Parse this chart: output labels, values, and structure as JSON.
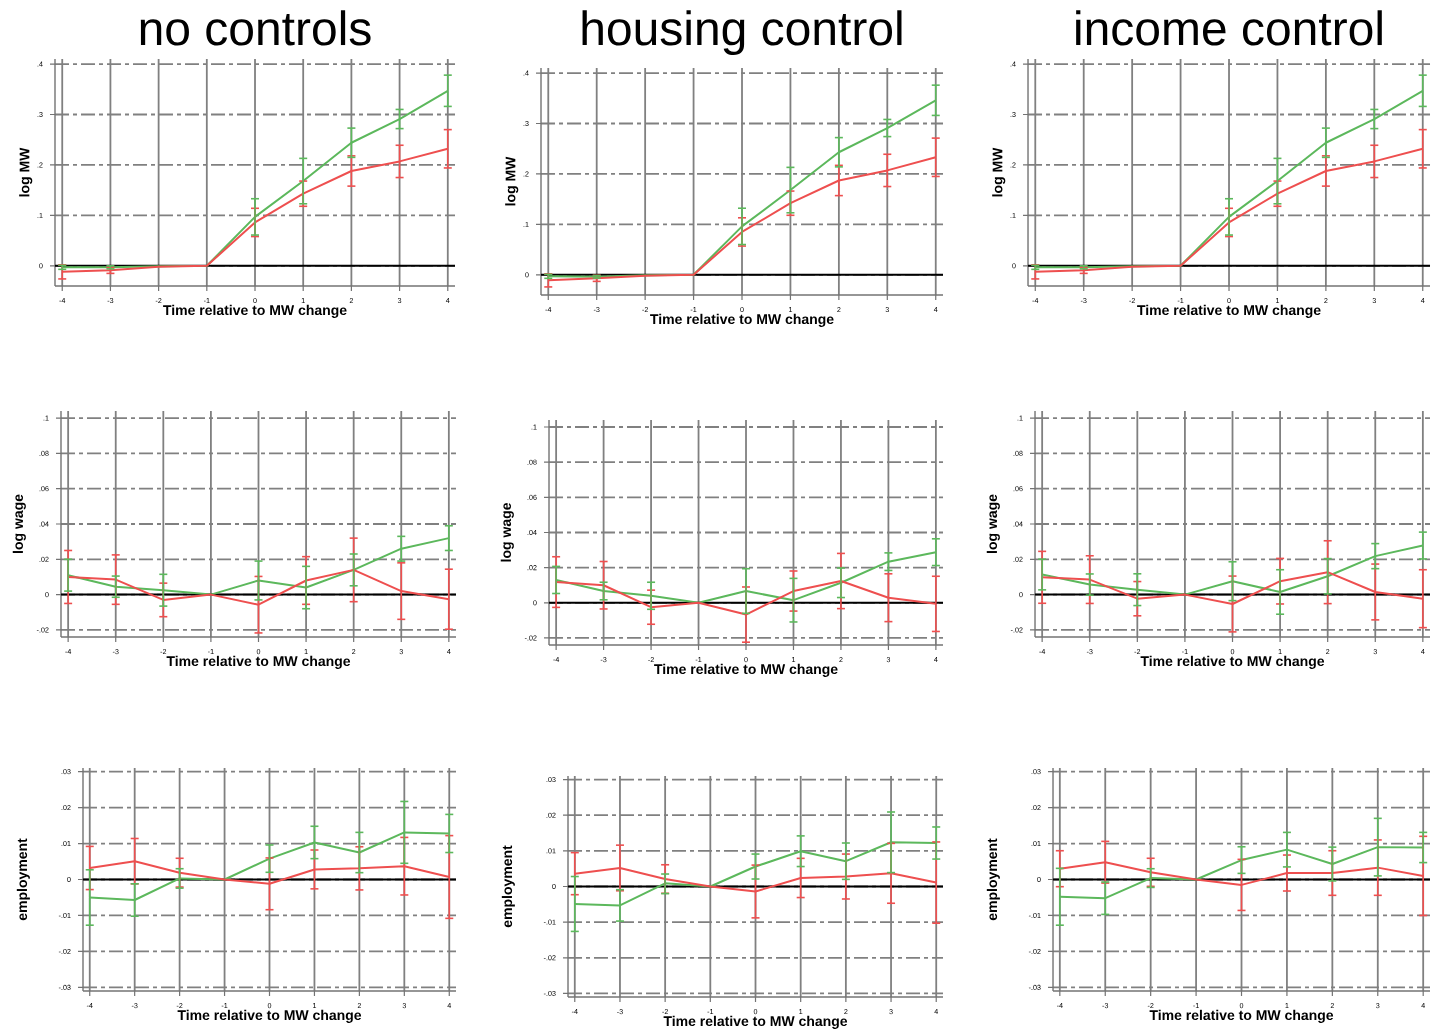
{
  "chart_data": [
    {
      "type": "line",
      "title": "no controls",
      "xlabel": "Time relative to MW change",
      "ylabel": "log MW",
      "x": [
        -4,
        -3,
        -2,
        -1,
        0,
        1,
        2,
        3,
        4
      ],
      "xlim": [
        -4.15,
        4.15
      ],
      "ylim": [
        -0.04,
        0.41
      ],
      "xticks": [
        -4,
        -3,
        -2,
        -1,
        0,
        1,
        2,
        3,
        4
      ],
      "yticks": [
        0,
        {
          "value": 0.1,
          "label": ".1"
        },
        {
          "value": 0.2,
          "label": ".2"
        },
        {
          "value": 0.3,
          "label": ".3"
        },
        {
          "value": 0.4,
          "label": ".4"
        }
      ],
      "grid": true,
      "ref_lines": [
        {
          "axis": "y",
          "value": 0,
          "color": "#000000"
        }
      ],
      "series": [
        {
          "color": "#5cb85c",
          "values": [
            -0.003,
            -0.003,
            -0.001,
            0,
            0.097,
            0.168,
            0.244,
            0.291,
            0.347
          ],
          "errors": [
            0.004,
            0.003,
            null,
            null,
            0.036,
            0.045,
            0.029,
            0.019,
            0.031
          ]
        },
        {
          "color": "#ee4f4f",
          "values": [
            -0.012,
            -0.009,
            -0.002,
            0,
            0.086,
            0.143,
            0.188,
            0.207,
            0.232
          ],
          "errors": [
            0.014,
            0.006,
            null,
            null,
            0.028,
            0.025,
            0.03,
            0.032,
            0.038
          ]
        }
      ]
    },
    {
      "type": "line",
      "title": "housing control",
      "xlabel": "Time relative to MW change",
      "ylabel": "log MW",
      "x": [
        -4,
        -3,
        -2,
        -1,
        0,
        1,
        2,
        3,
        4
      ],
      "xlim": [
        -4.15,
        4.15
      ],
      "ylim": [
        -0.04,
        0.41
      ],
      "xticks": [
        -4,
        -3,
        -2,
        -1,
        0,
        1,
        2,
        3,
        4
      ],
      "yticks": [
        0,
        {
          "value": 0.1,
          "label": ".1"
        },
        {
          "value": 0.2,
          "label": ".2"
        },
        {
          "value": 0.3,
          "label": ".3"
        },
        {
          "value": 0.4,
          "label": ".4"
        }
      ],
      "grid": true,
      "ref_lines": [
        {
          "axis": "y",
          "value": 0,
          "color": "#000000"
        }
      ],
      "series": [
        {
          "color": "#5cb85c",
          "values": [
            -0.003,
            -0.004,
            -0.001,
            0,
            0.096,
            0.168,
            0.243,
            0.291,
            0.346
          ],
          "errors": [
            0.004,
            0.0025,
            null,
            null,
            0.036,
            0.045,
            0.029,
            0.017,
            0.03
          ]
        },
        {
          "color": "#ee4f4f",
          "values": [
            -0.011,
            -0.007,
            -0.002,
            0,
            0.085,
            0.142,
            0.187,
            0.207,
            0.233
          ],
          "errors": [
            0.013,
            0.006,
            null,
            null,
            0.028,
            0.024,
            0.03,
            0.032,
            0.038
          ]
        }
      ]
    },
    {
      "type": "line",
      "title": "income control",
      "xlabel": "Time relative to MW change",
      "ylabel": "log MW",
      "x": [
        -4,
        -3,
        -2,
        -1,
        0,
        1,
        2,
        3,
        4
      ],
      "xlim": [
        -4.15,
        4.15
      ],
      "ylim": [
        -0.04,
        0.41
      ],
      "xticks": [
        -4,
        -3,
        -2,
        -1,
        0,
        1,
        2,
        3,
        4
      ],
      "yticks": [
        0,
        {
          "value": 0.1,
          "label": ".1"
        },
        {
          "value": 0.2,
          "label": ".2"
        },
        {
          "value": 0.3,
          "label": ".3"
        },
        {
          "value": 0.4,
          "label": ".4"
        }
      ],
      "grid": true,
      "ref_lines": [
        {
          "axis": "y",
          "value": 0,
          "color": "#000000"
        }
      ],
      "series": [
        {
          "color": "#5cb85c",
          "values": [
            -0.003,
            -0.003,
            -0.001,
            0,
            0.097,
            0.168,
            0.244,
            0.291,
            0.347
          ],
          "errors": [
            0.004,
            0.003,
            null,
            null,
            0.036,
            0.045,
            0.029,
            0.019,
            0.031
          ]
        },
        {
          "color": "#ee4f4f",
          "values": [
            -0.012,
            -0.009,
            -0.002,
            0,
            0.086,
            0.143,
            0.188,
            0.207,
            0.232
          ],
          "errors": [
            0.014,
            0.006,
            null,
            null,
            0.028,
            0.025,
            0.03,
            0.032,
            0.038
          ]
        }
      ]
    },
    {
      "type": "line",
      "xlabel": "Time relative to MW change",
      "ylabel": "log wage",
      "x": [
        -4,
        -3,
        -2,
        -1,
        0,
        1,
        2,
        3,
        4
      ],
      "xlim": [
        -4.15,
        4.15
      ],
      "ylim": [
        -0.024,
        0.104
      ],
      "xticks": [
        -4,
        -3,
        -2,
        -1,
        0,
        1,
        2,
        3,
        4
      ],
      "yticks": [
        {
          "value": -0.02,
          "label": "-.02"
        },
        0,
        {
          "value": 0.02,
          "label": ".02"
        },
        {
          "value": 0.04,
          "label": ".04"
        },
        {
          "value": 0.06,
          "label": ".06"
        },
        {
          "value": 0.08,
          "label": ".08"
        },
        {
          "value": 0.1,
          "label": ".1"
        }
      ],
      "grid": true,
      "ref_lines": [
        {
          "axis": "y",
          "value": 0,
          "color": "#000000"
        }
      ],
      "series": [
        {
          "color": "#5cb85c",
          "values": [
            0.011,
            0.0045,
            0.0025,
            0,
            0.008,
            0.004,
            0.014,
            0.026,
            0.032
          ],
          "errors": [
            0.009,
            0.006,
            0.009,
            null,
            0.011,
            0.012,
            0.009,
            0.007,
            0.007
          ]
        },
        {
          "color": "#ee4f4f",
          "values": [
            0.01,
            0.0085,
            -0.003,
            0,
            -0.0057,
            0.008,
            0.014,
            0.002,
            -0.0026
          ],
          "errors": [
            0.015,
            0.014,
            0.0095,
            null,
            0.016,
            0.0135,
            0.018,
            0.016,
            0.017
          ]
        }
      ]
    },
    {
      "type": "line",
      "xlabel": "Time relative to MW change",
      "ylabel": "log wage",
      "x": [
        -4,
        -3,
        -2,
        -1,
        0,
        1,
        2,
        3,
        4
      ],
      "xlim": [
        -4.15,
        4.15
      ],
      "ylim": [
        -0.024,
        0.104
      ],
      "xticks": [
        -4,
        -3,
        -2,
        -1,
        0,
        1,
        2,
        3,
        4
      ],
      "yticks": [
        {
          "value": -0.02,
          "label": "-.02"
        },
        0,
        {
          "value": 0.02,
          "label": ".02"
        },
        {
          "value": 0.04,
          "label": ".04"
        },
        {
          "value": 0.06,
          "label": ".06"
        },
        {
          "value": 0.08,
          "label": ".08"
        },
        {
          "value": 0.1,
          "label": ".1"
        }
      ],
      "grid": true,
      "ref_lines": [
        {
          "axis": "y",
          "value": 0,
          "color": "#000000"
        }
      ],
      "series": [
        {
          "color": "#5cb85c",
          "values": [
            0.013,
            0.0067,
            0.004,
            0,
            0.0067,
            0.0015,
            0.0114,
            0.0234,
            0.0288
          ],
          "errors": [
            0.0077,
            0.005,
            0.0077,
            null,
            0.0127,
            0.0124,
            0.0084,
            0.005,
            0.0076
          ]
        },
        {
          "color": "#ee4f4f",
          "values": [
            0.0118,
            0.01,
            -0.0025,
            0,
            -0.0067,
            0.0067,
            0.0124,
            0.0029,
            -0.0006
          ],
          "errors": [
            0.0144,
            0.0135,
            0.0097,
            null,
            0.0157,
            0.0114,
            0.0157,
            0.0136,
            0.0157
          ]
        }
      ]
    },
    {
      "type": "line",
      "xlabel": "Time relative to MW change",
      "ylabel": "log wage",
      "x": [
        -4,
        -3,
        -2,
        -1,
        0,
        1,
        2,
        3,
        4
      ],
      "xlim": [
        -4.15,
        4.15
      ],
      "ylim": [
        -0.024,
        0.104
      ],
      "xticks": [
        -4,
        -3,
        -2,
        -1,
        0,
        1,
        2,
        3,
        4
      ],
      "yticks": [
        {
          "value": -0.02,
          "label": "-.02"
        },
        0,
        {
          "value": 0.02,
          "label": ".02"
        },
        {
          "value": 0.04,
          "label": ".04"
        },
        {
          "value": 0.06,
          "label": ".06"
        },
        {
          "value": 0.08,
          "label": ".08"
        },
        {
          "value": 0.1,
          "label": ".1"
        }
      ],
      "grid": true,
      "ref_lines": [
        {
          "axis": "y",
          "value": 0,
          "color": "#000000"
        }
      ],
      "series": [
        {
          "color": "#5cb85c",
          "values": [
            0.0114,
            0.0057,
            0.0028,
            0,
            0.0076,
            0.0015,
            0.0104,
            0.0218,
            0.0278
          ],
          "errors": [
            0.0087,
            0.006,
            0.009,
            null,
            0.011,
            0.0126,
            0.01,
            0.0071,
            0.0076
          ]
        },
        {
          "color": "#ee4f4f",
          "values": [
            0.0098,
            0.0085,
            -0.0023,
            0,
            -0.0053,
            0.0076,
            0.0127,
            0.0015,
            -0.0023
          ],
          "errors": [
            0.0147,
            0.0135,
            0.0097,
            null,
            0.0158,
            0.0129,
            0.0178,
            0.0158,
            0.0164
          ]
        }
      ]
    },
    {
      "type": "line",
      "xlabel": "Time relative to MW change",
      "ylabel": "employment",
      "x": [
        -4,
        -3,
        -2,
        -1,
        0,
        1,
        2,
        3,
        4
      ],
      "xlim": [
        -4.15,
        4.15
      ],
      "ylim": [
        -0.031,
        0.031
      ],
      "xticks": [
        -4,
        -3,
        -2,
        -1,
        0,
        1,
        2,
        3,
        4
      ],
      "yticks": [
        {
          "value": -0.03,
          "label": "-.03"
        },
        {
          "value": -0.02,
          "label": "-.02"
        },
        {
          "value": -0.01,
          "label": "-.01"
        },
        0,
        {
          "value": 0.01,
          "label": ".01"
        },
        {
          "value": 0.02,
          "label": ".02"
        },
        {
          "value": 0.03,
          "label": ".03"
        }
      ],
      "grid": true,
      "ref_lines": [
        {
          "axis": "y",
          "value": 0,
          "color": "#000000"
        }
      ],
      "series": [
        {
          "color": "#5cb85c",
          "values": [
            -0.005,
            -0.0057,
            0.0003,
            0,
            0.0058,
            0.0103,
            0.0075,
            0.0131,
            0.0128
          ],
          "errors": [
            0.0077,
            0.0045,
            0.0027,
            null,
            0.0038,
            0.0045,
            0.0056,
            0.0086,
            0.0053
          ]
        },
        {
          "color": "#ee4f4f",
          "values": [
            0.0032,
            0.0051,
            0.0019,
            0,
            -0.0012,
            0.0028,
            0.0031,
            0.0037,
            0.0007
          ],
          "errors": [
            0.006,
            0.0063,
            0.004,
            null,
            0.0072,
            0.0054,
            0.006,
            0.008,
            0.0115
          ]
        }
      ]
    },
    {
      "type": "line",
      "xlabel": "Time relative to MW change",
      "ylabel": "employment",
      "x": [
        -4,
        -3,
        -2,
        -1,
        0,
        1,
        2,
        3,
        4
      ],
      "xlim": [
        -4.15,
        4.15
      ],
      "ylim": [
        -0.031,
        0.031
      ],
      "xticks": [
        -4,
        -3,
        -2,
        -1,
        0,
        1,
        2,
        3,
        4
      ],
      "yticks": [
        {
          "value": -0.03,
          "label": "-.03"
        },
        {
          "value": -0.02,
          "label": "-.02"
        },
        {
          "value": -0.01,
          "label": "-.01"
        },
        0,
        {
          "value": 0.01,
          "label": ".01"
        },
        {
          "value": 0.02,
          "label": ".02"
        },
        {
          "value": 0.03,
          "label": ".03"
        }
      ],
      "grid": true,
      "ref_lines": [
        {
          "axis": "y",
          "value": 0,
          "color": "#000000"
        }
      ],
      "series": [
        {
          "color": "#5cb85c",
          "values": [
            -0.0049,
            -0.0053,
            0.0009,
            0,
            0.0056,
            0.0099,
            0.0071,
            0.0124,
            0.0122
          ],
          "errors": [
            0.0077,
            0.0044,
            [
              -0.002,
              0.0035
            ],
            null,
            0.0035,
            0.0043,
            0.0051,
            0.0085,
            0.0045
          ]
        },
        {
          "color": "#ee4f4f",
          "values": [
            0.0036,
            0.0052,
            0.0021,
            0,
            -0.0014,
            0.0024,
            0.0028,
            0.0037,
            0.0011
          ],
          "errors": [
            0.0059,
            0.0064,
            0.004,
            null,
            0.0074,
            0.0055,
            0.0063,
            0.0084,
            0.0114
          ]
        }
      ]
    },
    {
      "type": "line",
      "xlabel": "Time relative to MW change",
      "ylabel": "employment",
      "x": [
        -4,
        -3,
        -2,
        -1,
        0,
        1,
        2,
        3,
        4
      ],
      "xlim": [
        -4.15,
        4.15
      ],
      "ylim": [
        -0.031,
        0.031
      ],
      "xticks": [
        -4,
        -3,
        -2,
        -1,
        0,
        1,
        2,
        3,
        4
      ],
      "yticks": [
        {
          "value": -0.03,
          "label": "-.03"
        },
        {
          "value": -0.02,
          "label": "-.02"
        },
        {
          "value": -0.01,
          "label": "-.01"
        },
        0,
        {
          "value": 0.01,
          "label": ".01"
        },
        {
          "value": 0.02,
          "label": ".02"
        },
        {
          "value": 0.03,
          "label": ".03"
        }
      ],
      "grid": true,
      "ref_lines": [
        {
          "axis": "y",
          "value": 0,
          "color": "#000000"
        }
      ],
      "series": [
        {
          "color": "#5cb85c",
          "values": [
            -0.0048,
            -0.0052,
            0.0004,
            0,
            0.0054,
            0.0083,
            0.0043,
            0.009,
            0.0089
          ],
          "errors": [
            0.0079,
            0.0045,
            0.0026,
            null,
            0.0037,
            0.0048,
            0.0047,
            0.008,
            0.0042
          ]
        },
        {
          "color": "#ee4f4f",
          "values": [
            0.003,
            0.0048,
            0.002,
            0,
            -0.0015,
            0.0018,
            0.0018,
            0.0033,
            0.001
          ],
          "errors": [
            0.005,
            0.0058,
            0.0039,
            null,
            0.0071,
            0.005,
            0.0062,
            0.0077,
            0.011
          ]
        }
      ]
    }
  ]
}
